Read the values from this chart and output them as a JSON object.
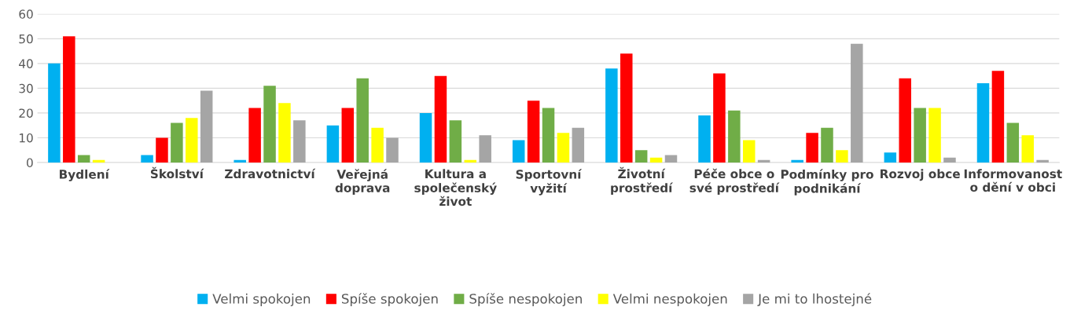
{
  "chart_data": {
    "type": "bar",
    "categories": [
      "Bydlení",
      "Školství",
      "Zdravotnictví",
      "Veřejná doprava",
      "Kultura a společenský život",
      "Sportovní vyžití",
      "Životní prostředí",
      "Péče obce o své prostředí",
      "Podmínky pro podnikání",
      "Rozvoj obce",
      "Informovanost o dění v obci"
    ],
    "series": [
      {
        "name": "Velmi spokojen",
        "color": "#00b0f0",
        "values": [
          40,
          3,
          1,
          15,
          20,
          9,
          38,
          19,
          1,
          4,
          32
        ]
      },
      {
        "name": "Spíše spokojen",
        "color": "#ff0000",
        "values": [
          51,
          10,
          22,
          22,
          35,
          25,
          44,
          36,
          12,
          34,
          37
        ]
      },
      {
        "name": "Spíše nespokojen",
        "color": "#70ad47",
        "values": [
          3,
          16,
          31,
          34,
          17,
          22,
          5,
          21,
          14,
          22,
          16
        ]
      },
      {
        "name": "Velmi nespokojen",
        "color": "#ffff00",
        "values": [
          1,
          18,
          24,
          14,
          1,
          12,
          2,
          9,
          5,
          22,
          11
        ]
      },
      {
        "name": "Je mi to lhostejné",
        "color": "#a5a5a5",
        "values": [
          0,
          29,
          17,
          10,
          11,
          14,
          3,
          1,
          48,
          2,
          1
        ]
      }
    ],
    "ylim": [
      0,
      60
    ],
    "yticks": [
      0,
      10,
      20,
      30,
      40,
      50,
      60
    ],
    "grid": "y",
    "legend": "bottom"
  }
}
